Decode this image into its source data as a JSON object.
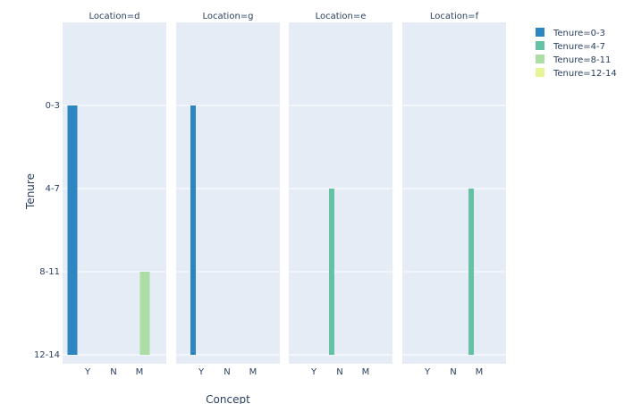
{
  "chart_data": {
    "type": "bar",
    "xlabel": "Concept",
    "ylabel": "Tenure",
    "x_categories": [
      "Y",
      "N",
      "M"
    ],
    "y_categories": [
      "0-3",
      "4-7",
      "8-11",
      "12-14"
    ],
    "facet_prefix": "Location=",
    "facets": [
      {
        "title": "Location=d",
        "value": "d"
      },
      {
        "title": "Location=g",
        "value": "g"
      },
      {
        "title": "Location=e",
        "value": "e"
      },
      {
        "title": "Location=f",
        "value": "f"
      }
    ],
    "legend": {
      "title": "",
      "position": "top-right"
    },
    "series": [
      {
        "name": "Tenure=0-3",
        "color": "#2e86c1"
      },
      {
        "name": "Tenure=4-7",
        "color": "#66c2a5"
      },
      {
        "name": "Tenure=8-11",
        "color": "#abdda4"
      },
      {
        "name": "Tenure=12-14",
        "color": "#e6f598"
      }
    ],
    "bars": [
      {
        "facet": "d",
        "x": "Y",
        "series": "Tenure=0-3",
        "y_top": "0-3",
        "width": "wide"
      },
      {
        "facet": "d",
        "x": "M",
        "series": "Tenure=8-11",
        "y_top": "8-11",
        "width": "wide"
      },
      {
        "facet": "g",
        "x": "Y",
        "series": "Tenure=0-3",
        "y_top": "0-3",
        "width": "narrow"
      },
      {
        "facet": "e",
        "x": "N",
        "series": "Tenure=4-7",
        "y_top": "4-7",
        "width": "narrow"
      },
      {
        "facet": "f",
        "x": "M",
        "series": "Tenure=4-7",
        "y_top": "4-7",
        "width": "narrow"
      }
    ],
    "grid": true,
    "background": "#e5ecf6"
  }
}
